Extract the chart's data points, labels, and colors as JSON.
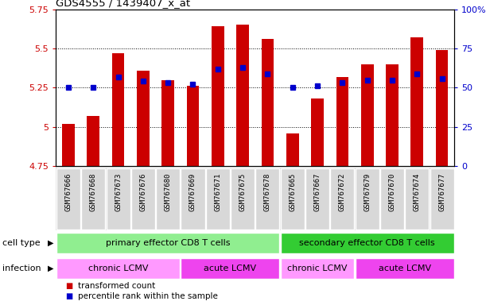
{
  "title": "GDS4555 / 1439407_x_at",
  "samples": [
    "GSM767666",
    "GSM767668",
    "GSM767673",
    "GSM767676",
    "GSM767680",
    "GSM767669",
    "GSM767671",
    "GSM767675",
    "GSM767678",
    "GSM767665",
    "GSM767667",
    "GSM767672",
    "GSM767679",
    "GSM767670",
    "GSM767674",
    "GSM767677"
  ],
  "transformed_count": [
    5.02,
    5.07,
    5.47,
    5.36,
    5.3,
    5.26,
    5.64,
    5.65,
    5.56,
    4.96,
    5.18,
    5.32,
    5.4,
    5.4,
    5.57,
    5.49
  ],
  "percentile_rank": [
    50,
    50,
    57,
    54,
    53,
    52,
    62,
    63,
    59,
    50,
    51,
    53,
    55,
    55,
    59,
    56
  ],
  "ylim_left": [
    4.75,
    5.75
  ],
  "ylim_right": [
    0,
    100
  ],
  "yticks_left": [
    4.75,
    5.0,
    5.25,
    5.5,
    5.75
  ],
  "yticks_right": [
    0,
    25,
    50,
    75,
    100
  ],
  "ytick_labels_left": [
    "4.75",
    "5",
    "5.25",
    "5.5",
    "5.75"
  ],
  "ytick_labels_right": [
    "0",
    "25",
    "50",
    "75",
    "100%"
  ],
  "bar_color": "#CC0000",
  "blue_color": "#0000CC",
  "bar_width": 0.5,
  "cell_type_groups": [
    {
      "label": "primary effector CD8 T cells",
      "start": 0,
      "end": 8,
      "color": "#90EE90"
    },
    {
      "label": "secondary effector CD8 T cells",
      "start": 9,
      "end": 15,
      "color": "#33CC33"
    }
  ],
  "infection_groups": [
    {
      "label": "chronic LCMV",
      "start": 0,
      "end": 4,
      "color": "#FF99FF"
    },
    {
      "label": "acute LCMV",
      "start": 5,
      "end": 8,
      "color": "#EE44EE"
    },
    {
      "label": "chronic LCMV",
      "start": 9,
      "end": 11,
      "color": "#FF99FF"
    },
    {
      "label": "acute LCMV",
      "start": 12,
      "end": 15,
      "color": "#EE44EE"
    }
  ],
  "legend_items": [
    {
      "label": "transformed count",
      "color": "#CC0000"
    },
    {
      "label": "percentile rank within the sample",
      "color": "#0000CC"
    }
  ],
  "cell_type_label": "cell type",
  "infection_label": "infection",
  "axis_color_left": "#CC0000",
  "axis_color_right": "#0000CC",
  "figwidth": 6.11,
  "figheight": 3.84,
  "dpi": 100
}
